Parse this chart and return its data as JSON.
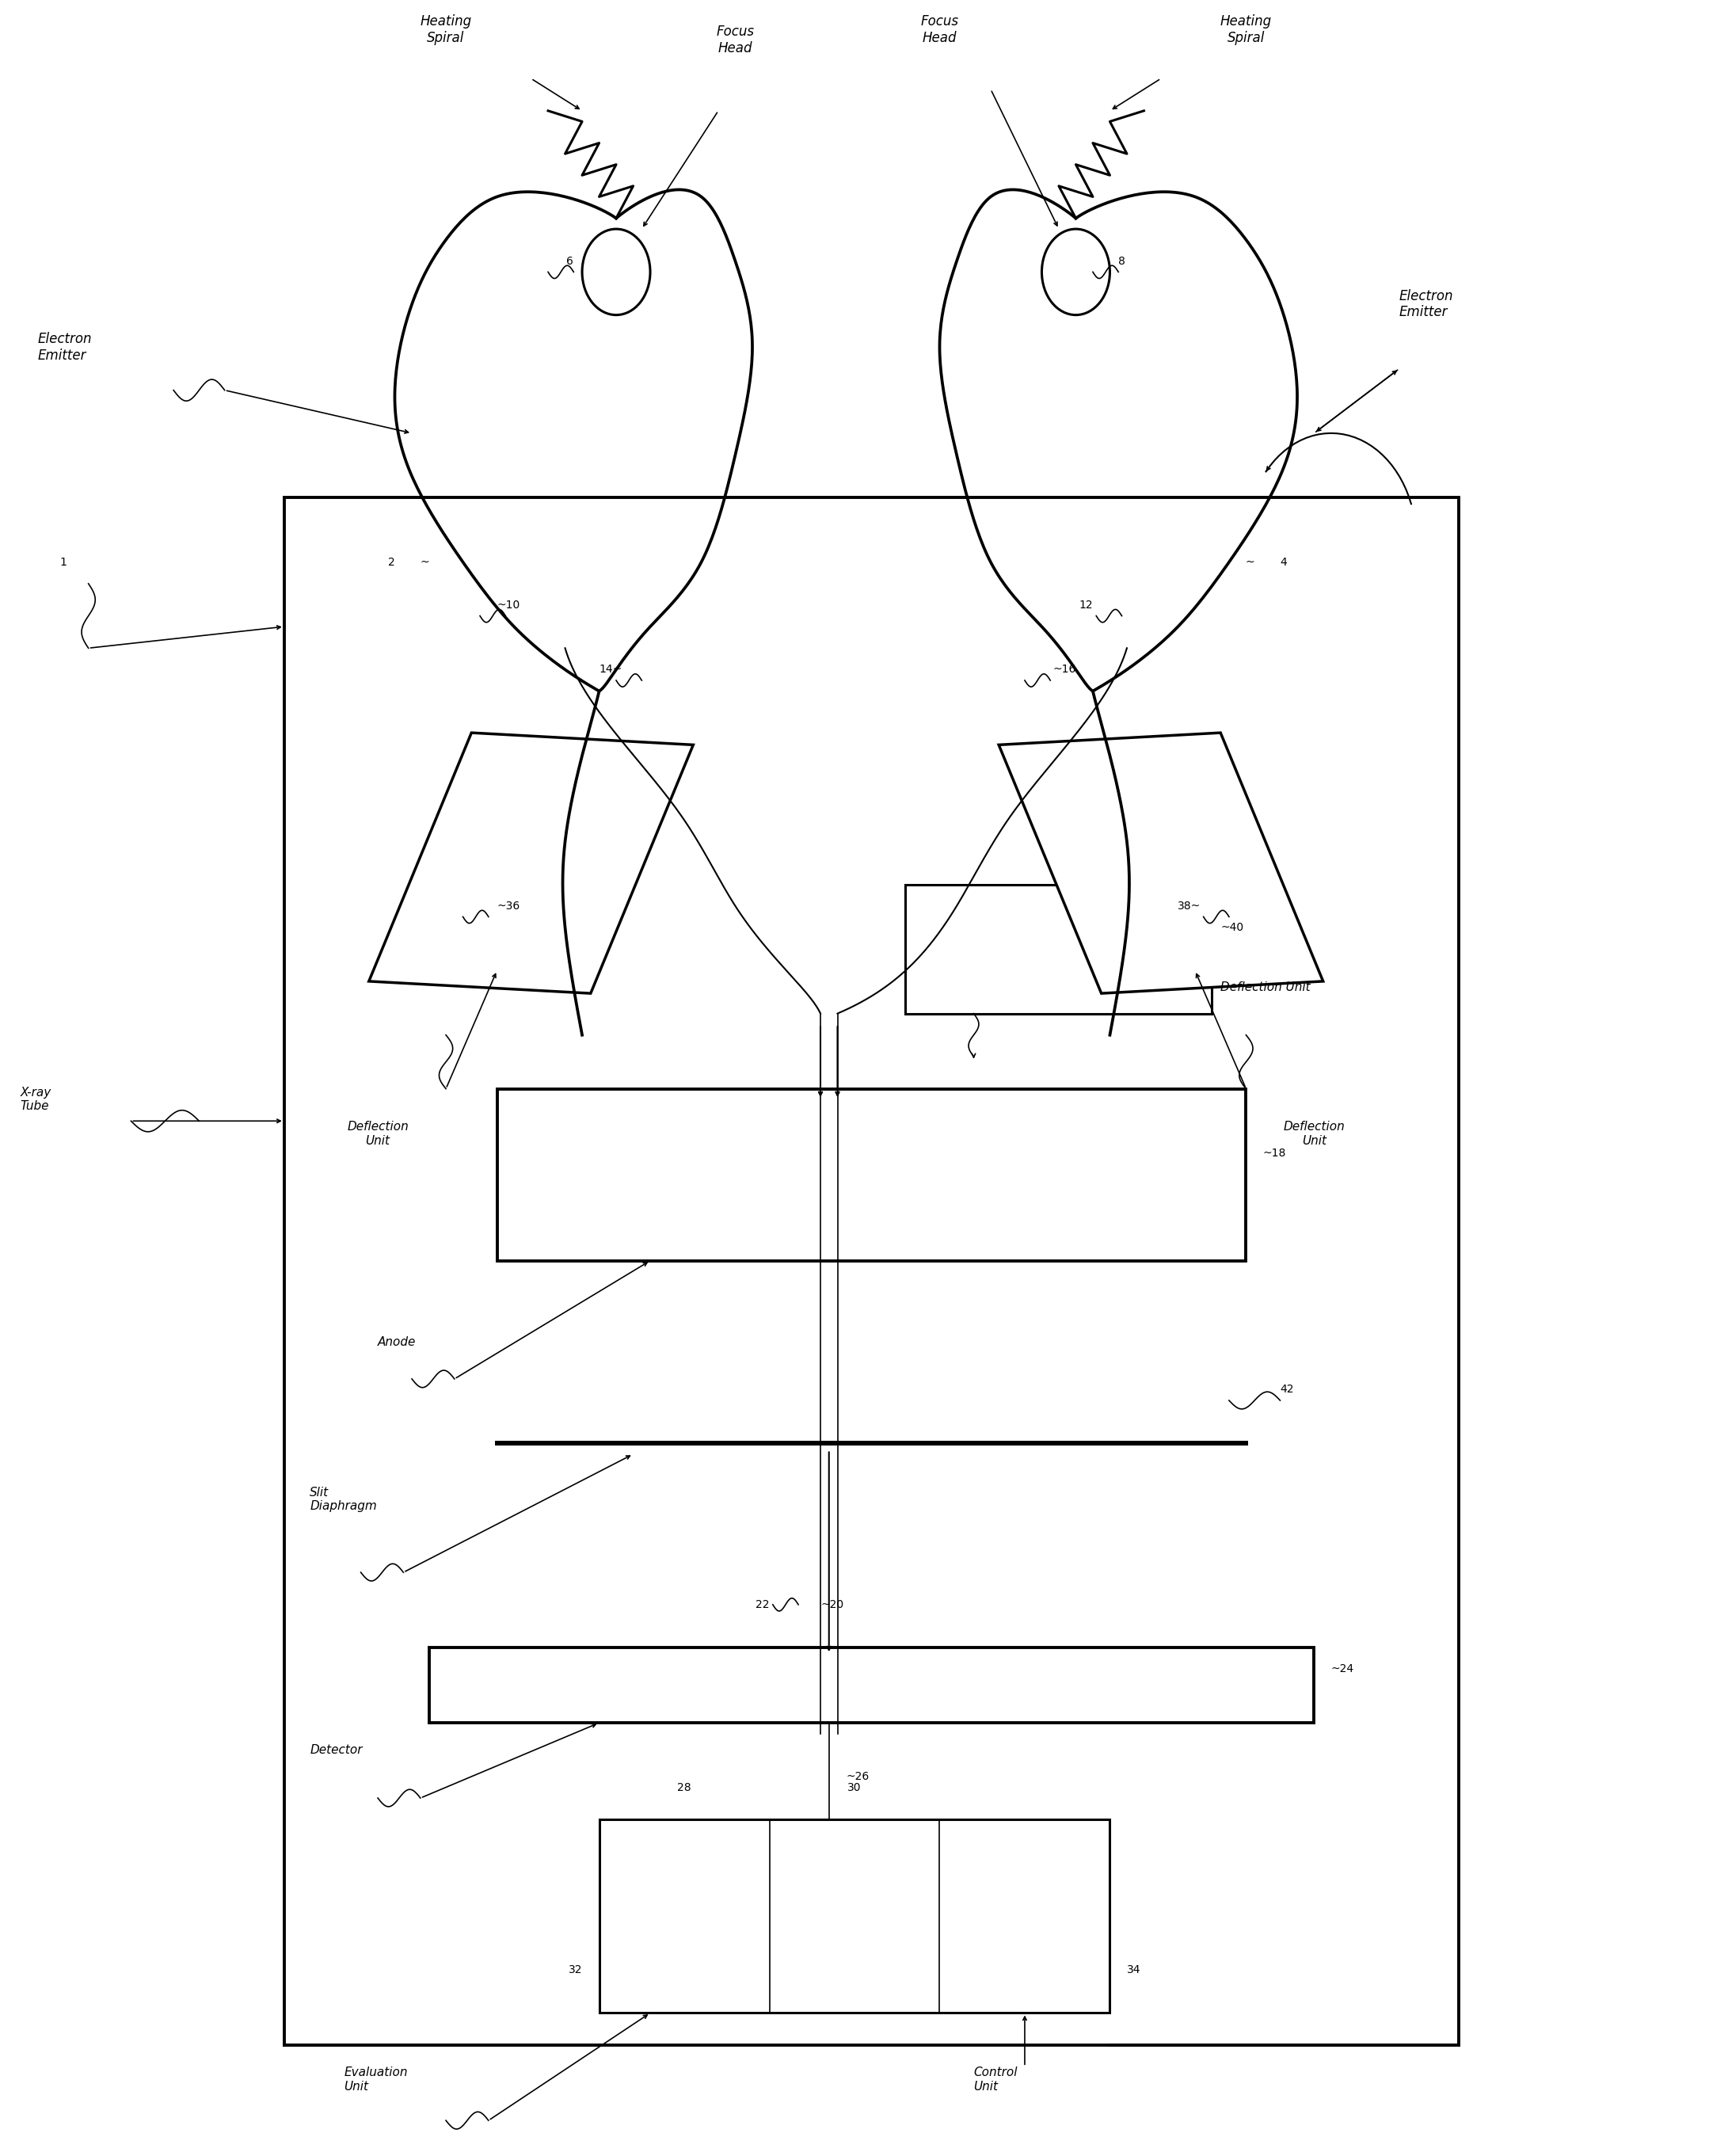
{
  "bg": "#ffffff",
  "lc": "#000000",
  "fig_w": 21.58,
  "fig_h": 27.22,
  "labels": {
    "heating_spiral_left": "Heating\nSpiral",
    "focus_head_left": "Focus\nHead",
    "focus_head_right": "Focus\nHead",
    "heating_spiral_right": "Heating\nSpiral",
    "electron_emitter_left": "Electron\nEmitter",
    "electron_emitter_right": "Electron\nEmitter",
    "xray_tube": "X-ray\nTube",
    "deflection_unit_left": "Deflection\nUnit",
    "deflection_unit_right": "Deflection\nUnit",
    "deflection_unit_center": "Deflection Unit",
    "anode": "Anode",
    "slit_diaphragm": "Slit\nDiaphragm",
    "detector": "Detector",
    "evaluation_unit": "Evaluation\nUnit",
    "control_unit": "Control\nUnit"
  }
}
